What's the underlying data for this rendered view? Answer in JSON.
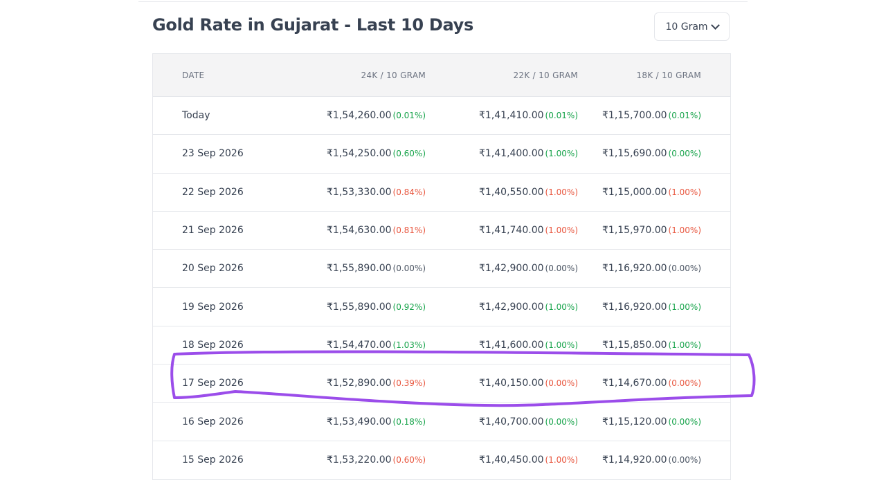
{
  "title": "Gold Rate in Gujarat - Last 10 Days",
  "unit_select": {
    "value": "10 Gram"
  },
  "icons": {
    "dropdown": "chevron-down-icon"
  },
  "colors": {
    "up": "#16a34a",
    "down": "#e8553d",
    "flat": "#4b5563",
    "annotation": "#9b4dea"
  },
  "table": {
    "headers": [
      "DATE",
      "24K / 10 GRAM",
      "22K / 10 GRAM",
      "18K / 10 GRAM"
    ],
    "rows": [
      {
        "date": "Today",
        "k24": {
          "price": "₹1,54,260.00",
          "change": "(0.01%)",
          "dir": "up"
        },
        "k22": {
          "price": "₹1,41,410.00",
          "change": "(0.01%)",
          "dir": "up"
        },
        "k18": {
          "price": "₹1,15,700.00",
          "change": "(0.01%)",
          "dir": "up"
        }
      },
      {
        "date": "23 Sep 2026",
        "k24": {
          "price": "₹1,54,250.00",
          "change": "(0.60%)",
          "dir": "up"
        },
        "k22": {
          "price": "₹1,41,400.00",
          "change": "(1.00%)",
          "dir": "up"
        },
        "k18": {
          "price": "₹1,15,690.00",
          "change": "(0.00%)",
          "dir": "up"
        }
      },
      {
        "date": "22 Sep 2026",
        "k24": {
          "price": "₹1,53,330.00",
          "change": "(0.84%)",
          "dir": "down"
        },
        "k22": {
          "price": "₹1,40,550.00",
          "change": "(1.00%)",
          "dir": "down"
        },
        "k18": {
          "price": "₹1,15,000.00",
          "change": "(1.00%)",
          "dir": "down"
        }
      },
      {
        "date": "21 Sep 2026",
        "k24": {
          "price": "₹1,54,630.00",
          "change": "(0.81%)",
          "dir": "down"
        },
        "k22": {
          "price": "₹1,41,740.00",
          "change": "(1.00%)",
          "dir": "down"
        },
        "k18": {
          "price": "₹1,15,970.00",
          "change": "(1.00%)",
          "dir": "down"
        }
      },
      {
        "date": "20 Sep 2026",
        "k24": {
          "price": "₹1,55,890.00",
          "change": "(0.00%)",
          "dir": "flat"
        },
        "k22": {
          "price": "₹1,42,900.00",
          "change": "(0.00%)",
          "dir": "flat"
        },
        "k18": {
          "price": "₹1,16,920.00",
          "change": "(0.00%)",
          "dir": "flat"
        }
      },
      {
        "date": "19 Sep 2026",
        "k24": {
          "price": "₹1,55,890.00",
          "change": "(0.92%)",
          "dir": "up"
        },
        "k22": {
          "price": "₹1,42,900.00",
          "change": "(1.00%)",
          "dir": "up"
        },
        "k18": {
          "price": "₹1,16,920.00",
          "change": "(1.00%)",
          "dir": "up"
        }
      },
      {
        "date": "18 Sep 2026",
        "k24": {
          "price": "₹1,54,470.00",
          "change": "(1.03%)",
          "dir": "up"
        },
        "k22": {
          "price": "₹1,41,600.00",
          "change": "(1.00%)",
          "dir": "up"
        },
        "k18": {
          "price": "₹1,15,850.00",
          "change": "(1.00%)",
          "dir": "up"
        }
      },
      {
        "date": "17 Sep 2026",
        "k24": {
          "price": "₹1,52,890.00",
          "change": "(0.39%)",
          "dir": "down"
        },
        "k22": {
          "price": "₹1,40,150.00",
          "change": "(0.00%)",
          "dir": "down"
        },
        "k18": {
          "price": "₹1,14,670.00",
          "change": "(0.00%)",
          "dir": "down"
        }
      },
      {
        "date": "16 Sep 2026",
        "k24": {
          "price": "₹1,53,490.00",
          "change": "(0.18%)",
          "dir": "up"
        },
        "k22": {
          "price": "₹1,40,700.00",
          "change": "(0.00%)",
          "dir": "up"
        },
        "k18": {
          "price": "₹1,15,120.00",
          "change": "(0.00%)",
          "dir": "up"
        }
      },
      {
        "date": "15 Sep 2026",
        "k24": {
          "price": "₹1,53,220.00",
          "change": "(0.60%)",
          "dir": "down"
        },
        "k22": {
          "price": "₹1,40,450.00",
          "change": "(1.00%)",
          "dir": "down"
        },
        "k18": {
          "price": "₹1,14,920.00",
          "change": "(0.00%)",
          "dir": "flat"
        }
      }
    ]
  }
}
